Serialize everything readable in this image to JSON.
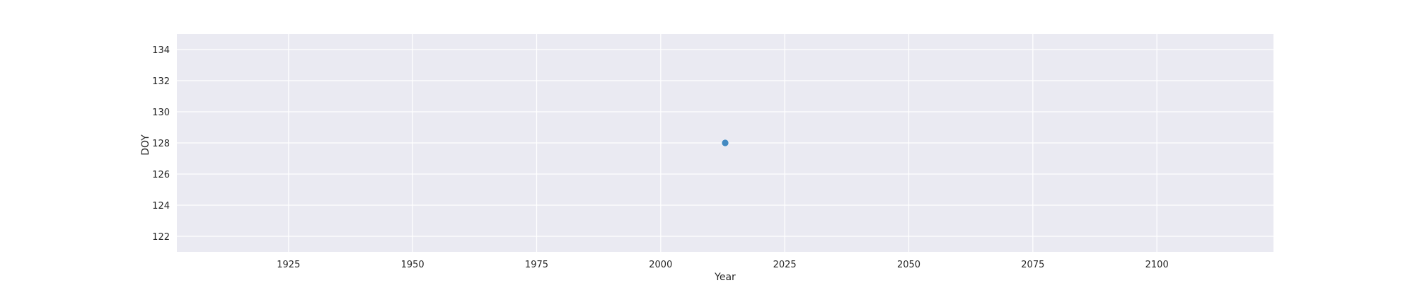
{
  "chart_data": {
    "type": "scatter",
    "title": "",
    "xlabel": "Year",
    "ylabel": "DOY",
    "xlim": [
      1902.5,
      2123.5
    ],
    "ylim": [
      121,
      135
    ],
    "x_ticks": [
      1925,
      1950,
      1975,
      2000,
      2025,
      2050,
      2075,
      2100
    ],
    "y_ticks": [
      122,
      124,
      126,
      128,
      130,
      132,
      134
    ],
    "grid": true,
    "background_color": "#eaeaf2",
    "grid_color": "#ffffff",
    "series": [
      {
        "color": "#3a84be",
        "points": [
          {
            "x": 2013,
            "y": 128
          }
        ]
      }
    ]
  }
}
